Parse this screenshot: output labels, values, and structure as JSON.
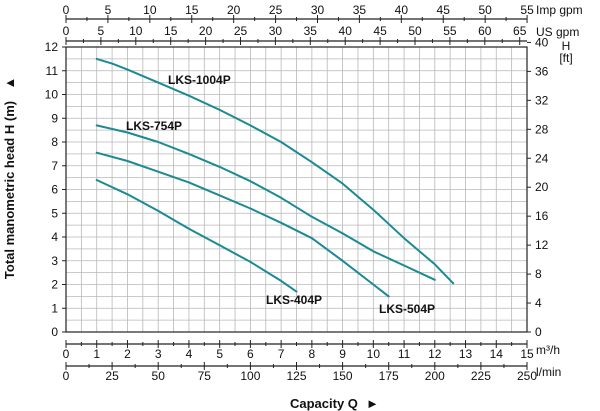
{
  "chart_data": {
    "type": "line",
    "title": "",
    "xlabel": "Capacity Q",
    "ylabel": "Total manometric head H (m)",
    "xlim": [
      0,
      15
    ],
    "ylim": [
      0,
      12
    ],
    "x_unit": "m³/h",
    "grid": true,
    "series": [
      {
        "name": "LKS-404P",
        "x": [
          1,
          2,
          3,
          4,
          5,
          6,
          7,
          7.5
        ],
        "y": [
          6.4,
          5.8,
          5.1,
          4.35,
          3.65,
          2.95,
          2.15,
          1.7
        ]
      },
      {
        "name": "LKS-504P",
        "x": [
          1,
          2,
          3,
          4,
          5,
          6,
          7,
          8,
          9,
          10,
          10.5
        ],
        "y": [
          7.55,
          7.2,
          6.75,
          6.3,
          5.75,
          5.2,
          4.6,
          3.95,
          3.0,
          2.0,
          1.5
        ]
      },
      {
        "name": "LKS-754P",
        "x": [
          1,
          2,
          3,
          4,
          5,
          6,
          7,
          8,
          9,
          10,
          11,
          12
        ],
        "y": [
          8.7,
          8.4,
          8.0,
          7.5,
          6.95,
          6.35,
          5.65,
          4.85,
          4.15,
          3.4,
          2.8,
          2.2
        ]
      },
      {
        "name": "LKS-1004P",
        "x": [
          1,
          1.5,
          2,
          3,
          4,
          5,
          6,
          7,
          8,
          9,
          10,
          11,
          12,
          12.6
        ],
        "y": [
          11.5,
          11.3,
          11.05,
          10.5,
          9.95,
          9.35,
          8.7,
          8.0,
          7.15,
          6.25,
          5.15,
          3.95,
          2.85,
          2.05
        ]
      }
    ],
    "series_labels": [
      "LKS-1004P",
      "LKS-754P",
      "LKS-404P",
      "LKS-504P"
    ],
    "axes": {
      "left": {
        "title": "Total manometric head H (m)",
        "arrow": "▲",
        "ticks": [
          "0",
          "1",
          "2",
          "3",
          "4",
          "5",
          "6",
          "7",
          "8",
          "9",
          "10",
          "11",
          "12"
        ]
      },
      "right": {
        "unit_top": "H",
        "unit_bottom": "[ft]",
        "ticks": [
          "0",
          "4",
          "8",
          "12",
          "16",
          "20",
          "24",
          "28",
          "32",
          "36",
          "40"
        ]
      },
      "bottom_m3h": {
        "unit": "m³/h",
        "ticks": [
          "0",
          "1",
          "2",
          "3",
          "4",
          "5",
          "6",
          "7",
          "8",
          "9",
          "10",
          "11",
          "12",
          "13",
          "14",
          "15"
        ]
      },
      "bottom_lmin": {
        "unit": "l/min",
        "ticks": [
          "0",
          "25",
          "50",
          "75",
          "100",
          "125",
          "150",
          "175",
          "200",
          "225",
          "250"
        ]
      },
      "top_us": {
        "unit": "US gpm",
        "ticks": [
          "0",
          "5",
          "10",
          "15",
          "20",
          "25",
          "30",
          "35",
          "40",
          "45",
          "50",
          "55",
          "60",
          "65"
        ]
      },
      "top_imp": {
        "unit": "Imp gpm",
        "ticks": [
          "0",
          "5",
          "10",
          "15",
          "20",
          "25",
          "30",
          "35",
          "40",
          "45",
          "50",
          "55"
        ]
      }
    },
    "capacity_title": "Capacity Q",
    "capacity_arrow": "►",
    "colors": {
      "curve": "#1a8a93",
      "grid": "#b8b8b8",
      "frame": "#222222"
    }
  }
}
